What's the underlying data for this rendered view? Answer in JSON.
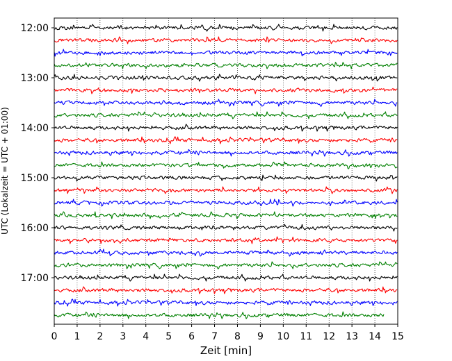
{
  "chart_data": {
    "type": "line",
    "title": "",
    "xlabel": "Zeit  [min]",
    "ylabel": "UTC (Lokalzeit = UTC + 01:00)",
    "xlim": [
      0,
      15
    ],
    "x_ticks": [
      "0",
      "1",
      "2",
      "3",
      "4",
      "5",
      "6",
      "7",
      "8",
      "9",
      "10",
      "11",
      "12",
      "13",
      "14",
      "15"
    ],
    "y_tick_labels": [
      "12:00",
      "13:00",
      "14:00",
      "15:00",
      "16:00",
      "17:00"
    ],
    "grid": "vertical dotted lines at each minute",
    "row_interval_minutes": 15,
    "series_colors": [
      "#000000",
      "#ff0000",
      "#0000ff",
      "#008000"
    ],
    "rows": [
      {
        "time": "12:00",
        "color": "#000000",
        "end_minute": 15
      },
      {
        "time": "12:15",
        "color": "#ff0000",
        "end_minute": 15
      },
      {
        "time": "12:30",
        "color": "#0000ff",
        "end_minute": 15
      },
      {
        "time": "12:45",
        "color": "#008000",
        "end_minute": 15
      },
      {
        "time": "13:00",
        "color": "#000000",
        "end_minute": 15
      },
      {
        "time": "13:15",
        "color": "#ff0000",
        "end_minute": 15
      },
      {
        "time": "13:30",
        "color": "#0000ff",
        "end_minute": 15
      },
      {
        "time": "13:45",
        "color": "#008000",
        "end_minute": 15
      },
      {
        "time": "14:00",
        "color": "#000000",
        "end_minute": 15
      },
      {
        "time": "14:15",
        "color": "#ff0000",
        "end_minute": 15
      },
      {
        "time": "14:30",
        "color": "#0000ff",
        "end_minute": 15
      },
      {
        "time": "14:45",
        "color": "#008000",
        "end_minute": 15
      },
      {
        "time": "15:00",
        "color": "#000000",
        "end_minute": 15
      },
      {
        "time": "15:15",
        "color": "#ff0000",
        "end_minute": 15
      },
      {
        "time": "15:30",
        "color": "#0000ff",
        "end_minute": 15
      },
      {
        "time": "15:45",
        "color": "#008000",
        "end_minute": 15
      },
      {
        "time": "16:00",
        "color": "#000000",
        "end_minute": 15
      },
      {
        "time": "16:15",
        "color": "#ff0000",
        "end_minute": 15
      },
      {
        "time": "16:30",
        "color": "#0000ff",
        "end_minute": 15
      },
      {
        "time": "16:45",
        "color": "#008000",
        "end_minute": 15
      },
      {
        "time": "17:00",
        "color": "#000000",
        "end_minute": 15
      },
      {
        "time": "17:15",
        "color": "#ff0000",
        "end_minute": 15
      },
      {
        "time": "17:30",
        "color": "#0000ff",
        "end_minute": 15
      },
      {
        "time": "17:45",
        "color": "#008000",
        "end_minute": 14.4
      }
    ]
  }
}
